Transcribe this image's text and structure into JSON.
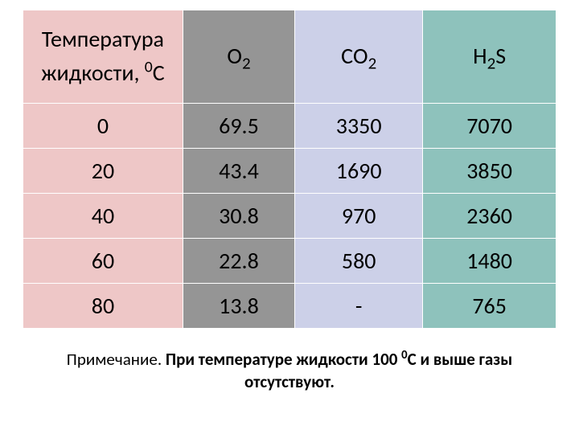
{
  "table": {
    "columns": [
      {
        "label_line1": "Температура",
        "label_line2": "жидкости, ",
        "label_sup": "0",
        "label_after": "С",
        "bg": "#eec7c7",
        "width": "30%"
      },
      {
        "label_pre": "О",
        "label_sub": "2",
        "bg": "#959595",
        "width": "21%"
      },
      {
        "label_pre": "СО",
        "label_sub": "2",
        "bg": "#ccd0e8",
        "width": "24%"
      },
      {
        "label_pre": "H",
        "label_sub": "2",
        "label_post": "S",
        "bg": "#8ec2bc",
        "width": "25%"
      }
    ],
    "col_body_bg": [
      "#eec7c7",
      "#959595",
      "#ccd0e8",
      "#8ec2bc"
    ],
    "body_fontsize": 28,
    "header_fontsize": 28,
    "border_color": "#ffffff",
    "rows": [
      [
        "0",
        "69.5",
        "3350",
        "7070"
      ],
      [
        "20",
        "43.4",
        "1690",
        "3850"
      ],
      [
        "40",
        "30.8",
        "970",
        "2360"
      ],
      [
        "60",
        "22.8",
        "580",
        "1480"
      ],
      [
        "80",
        "13.8",
        "-",
        "765"
      ]
    ]
  },
  "note": {
    "lead": "Примечание. ",
    "bold_pre": "При температуре жидкости 100 ",
    "bold_sup": "0",
    "bold_post": "С и выше газы отсутствуют.",
    "fontsize": 21,
    "color": "#000000"
  }
}
